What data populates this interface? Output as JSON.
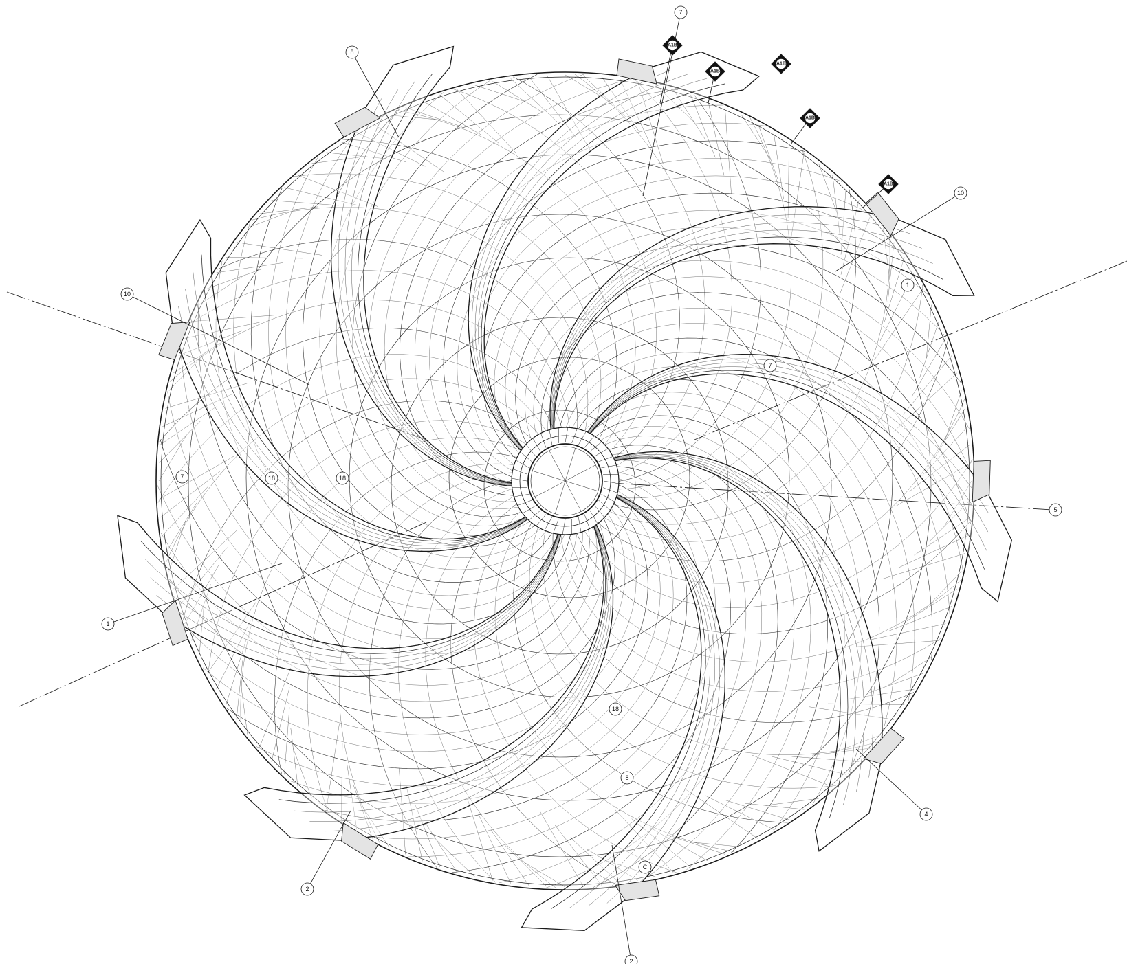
{
  "drawing": {
    "background": "#ffffff",
    "ink": "#1a1a1a",
    "blade_count": 9
  },
  "callouts": [
    {
      "label": "7"
    },
    {
      "label": "8"
    },
    {
      "label": "10"
    },
    {
      "label": "10"
    },
    {
      "label": "1"
    },
    {
      "label": "7"
    },
    {
      "label": "7"
    },
    {
      "label": "18"
    },
    {
      "label": "18"
    },
    {
      "label": "5"
    },
    {
      "label": "1"
    },
    {
      "label": "4"
    },
    {
      "label": "8"
    },
    {
      "label": "18"
    },
    {
      "label": "2"
    },
    {
      "label": "2"
    },
    {
      "label": "C"
    }
  ],
  "section_tags": [
    {
      "label": "A1B"
    },
    {
      "label": "A1B"
    },
    {
      "label": "A1B"
    },
    {
      "label": "A1B"
    },
    {
      "label": "A1B"
    }
  ]
}
